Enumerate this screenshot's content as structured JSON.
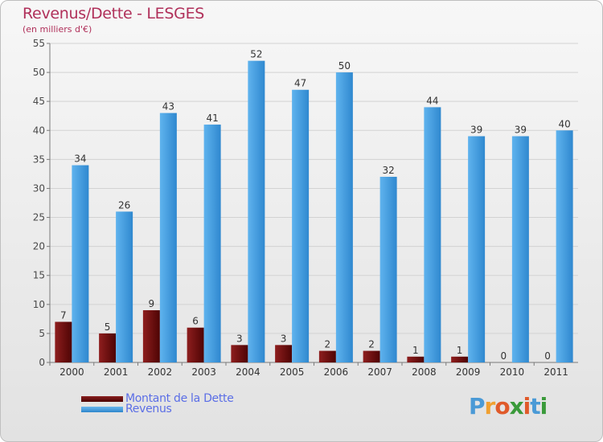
{
  "title": "Revenus/Dette - LESGES",
  "subtitle": "(en milliers d'€)",
  "logo": {
    "letters": [
      "P",
      "r",
      "o",
      "x",
      "i",
      "t",
      "i"
    ],
    "colors": [
      "#4a9ad6",
      "#f0a030",
      "#e05a2a",
      "#3a9a3a",
      "#e05a2a",
      "#4a9ad6",
      "#3a9a3a"
    ]
  },
  "legend": [
    {
      "label": "Montant de la Dette",
      "color": "#6b0d0d"
    },
    {
      "label": "Revenus",
      "color": "#3d97dd"
    }
  ],
  "chart_data": {
    "type": "bar",
    "title": "Revenus/Dette - LESGES",
    "subtitle": "(en milliers d'€)",
    "xlabel": "",
    "ylabel": "",
    "ylim": [
      0,
      55
    ],
    "yticks": [
      0,
      5,
      10,
      15,
      20,
      25,
      30,
      35,
      40,
      45,
      50,
      55
    ],
    "grid": true,
    "legend_position": "bottom-left",
    "categories": [
      "2000",
      "2001",
      "2002",
      "2003",
      "2004",
      "2005",
      "2006",
      "2007",
      "2008",
      "2009",
      "2010",
      "2011"
    ],
    "series": [
      {
        "name": "Montant de la Dette",
        "color": "#6b0d0d",
        "values": [
          7,
          5,
          9,
          6,
          3,
          3,
          2,
          2,
          1,
          1,
          0,
          0
        ]
      },
      {
        "name": "Revenus",
        "color": "#3d97dd",
        "values": [
          34,
          26,
          43,
          41,
          52,
          47,
          50,
          32,
          44,
          39,
          39,
          40
        ]
      }
    ]
  }
}
